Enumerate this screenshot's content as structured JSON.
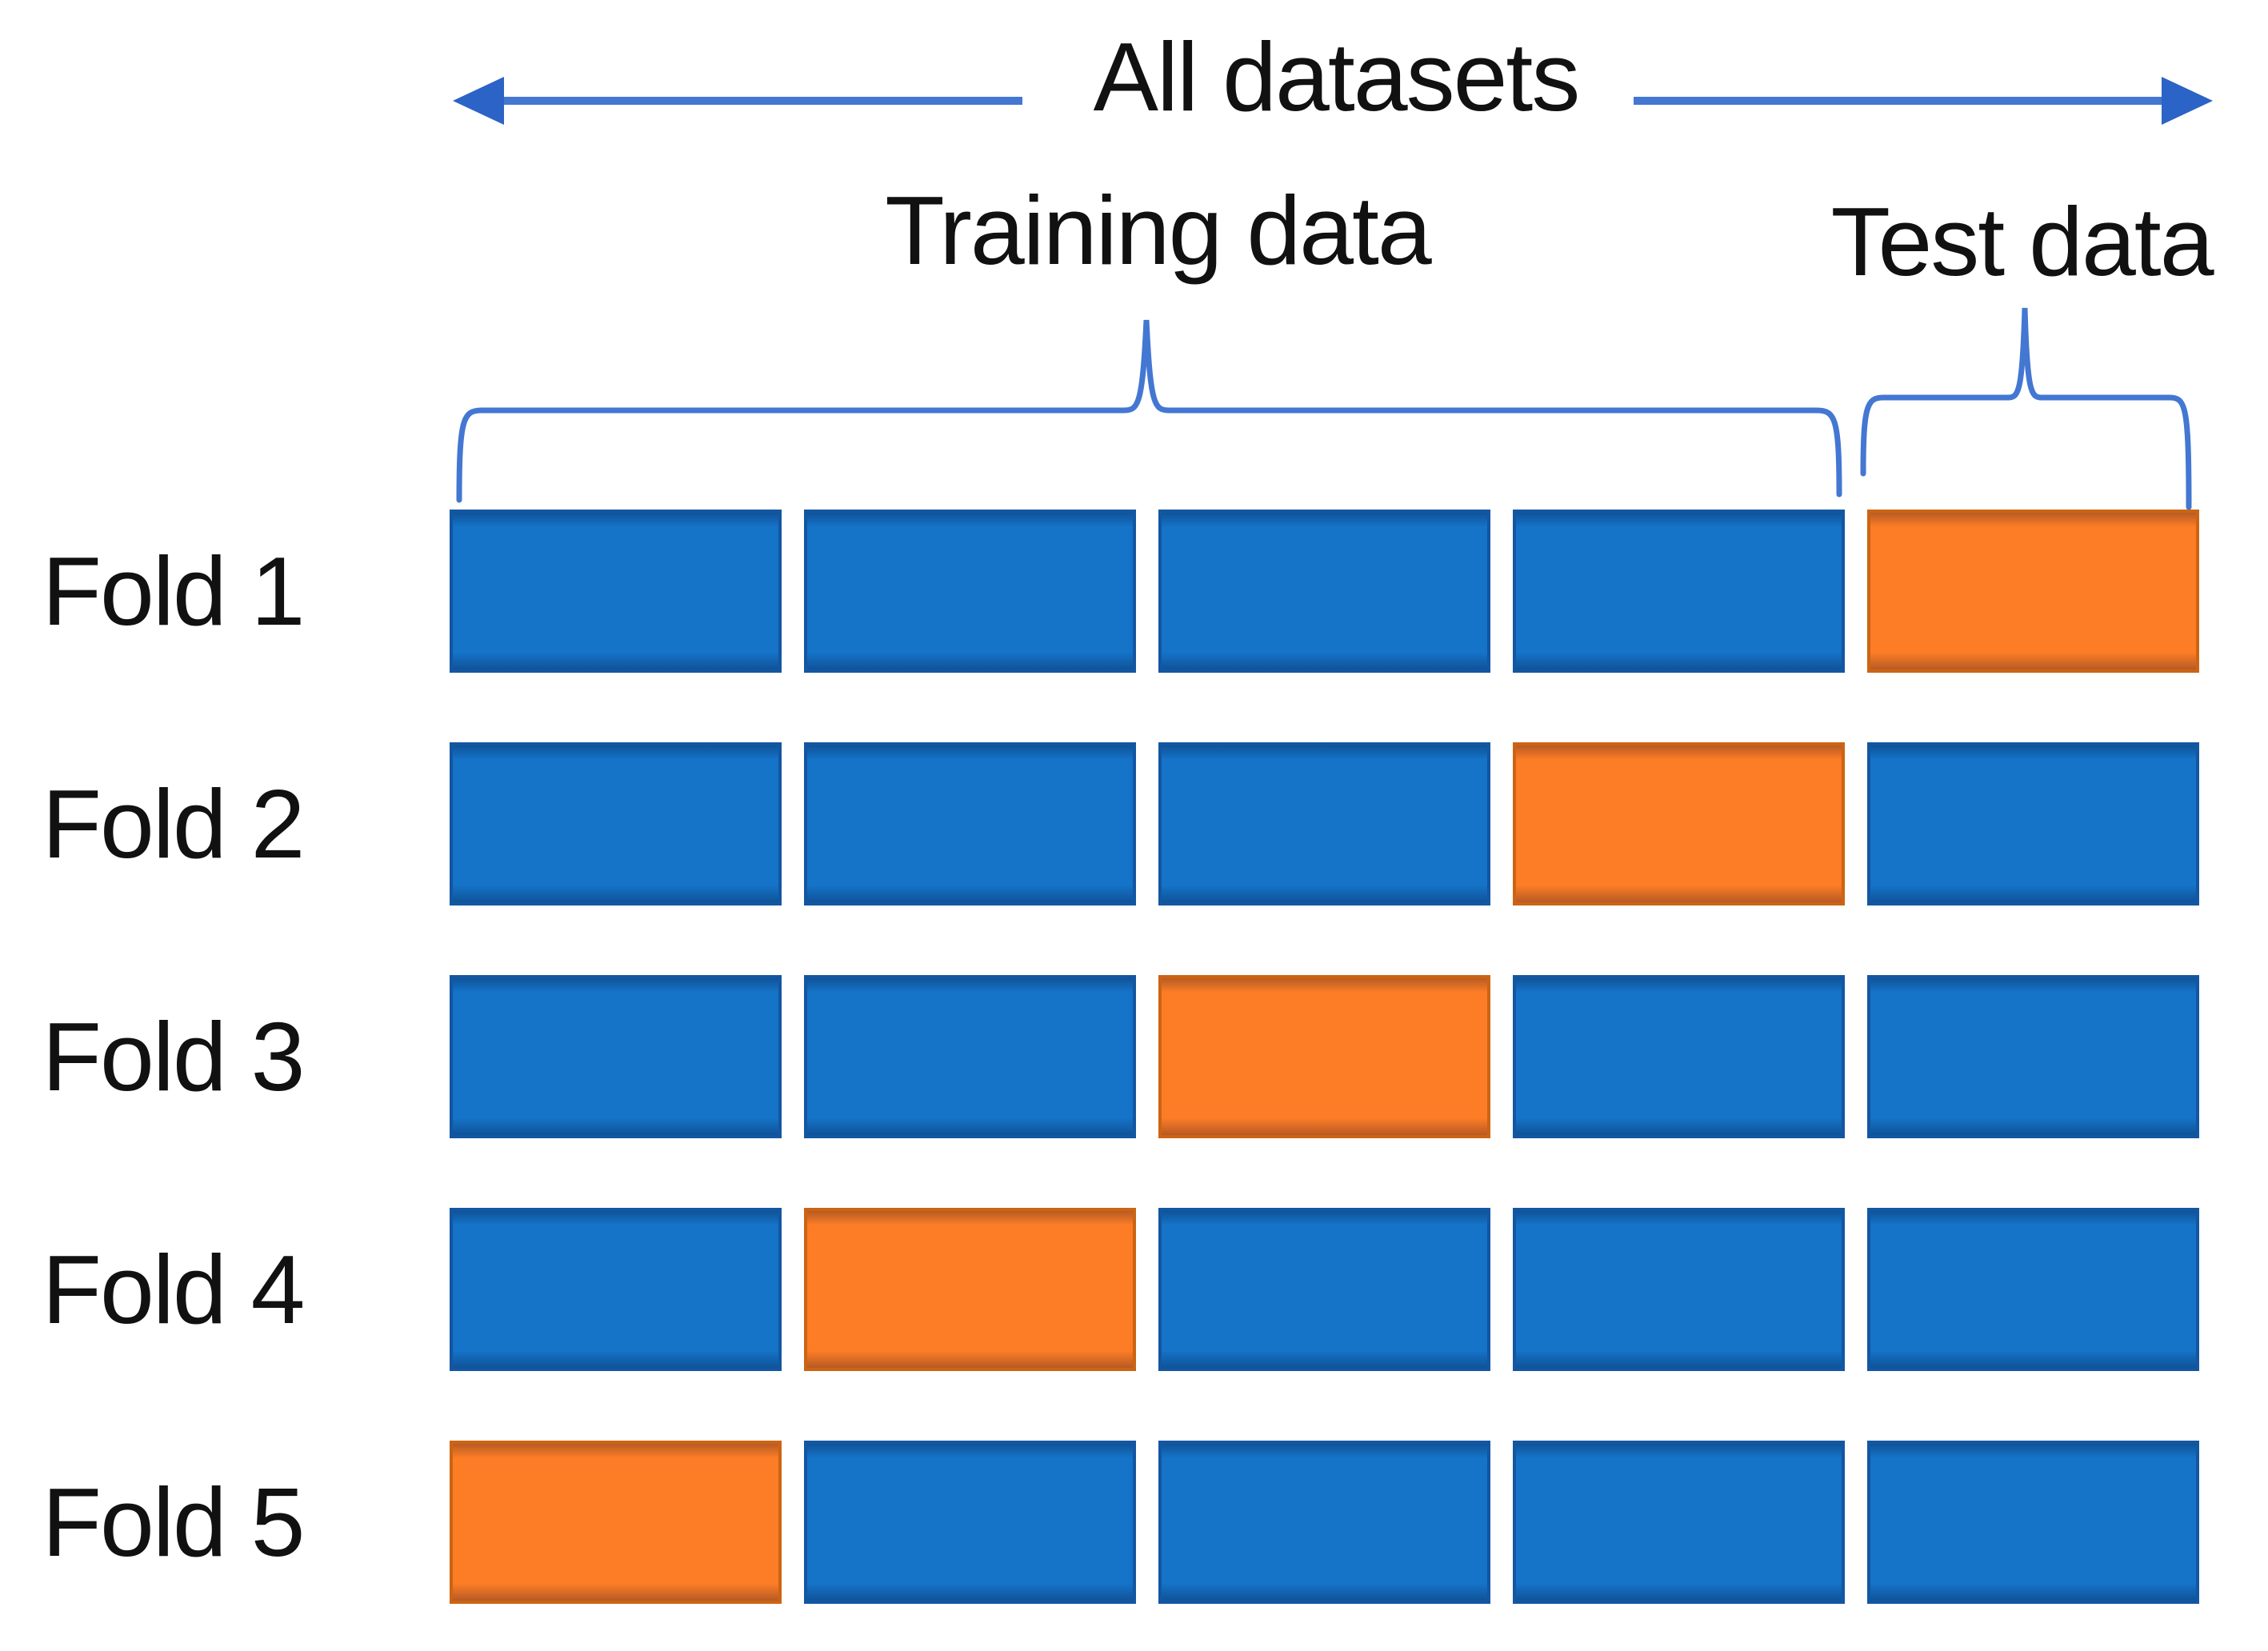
{
  "labels": {
    "all_datasets": "All datasets",
    "training_data": "Training data",
    "test_data": "Test data"
  },
  "colors": {
    "train_fill": "#1573C8",
    "train_border": "#1356A2",
    "test_fill": "#FD7D26",
    "test_border": "#CC6413",
    "accent": "#4377D2",
    "arrowhead": "#2B63C6",
    "text": "#111111"
  },
  "folds": [
    {
      "label": "Fold 1",
      "blocks": [
        "train",
        "train",
        "train",
        "train",
        "test"
      ]
    },
    {
      "label": "Fold 2",
      "blocks": [
        "train",
        "train",
        "train",
        "test",
        "train"
      ]
    },
    {
      "label": "Fold 3",
      "blocks": [
        "train",
        "train",
        "test",
        "train",
        "train"
      ]
    },
    {
      "label": "Fold 4",
      "blocks": [
        "train",
        "test",
        "train",
        "train",
        "train"
      ]
    },
    {
      "label": "Fold 5",
      "blocks": [
        "test",
        "train",
        "train",
        "train",
        "train"
      ]
    }
  ]
}
